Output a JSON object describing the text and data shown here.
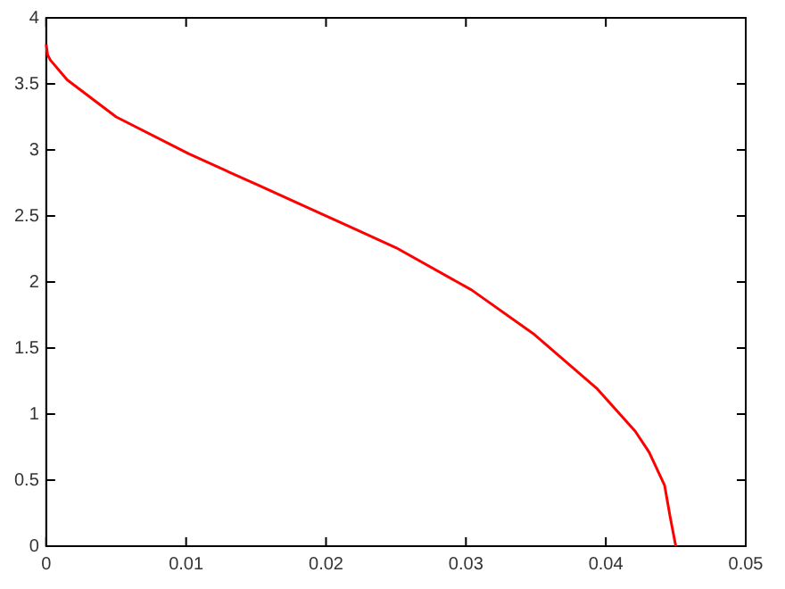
{
  "chart_data": {
    "type": "line",
    "x": [
      0,
      0.0001,
      0.0003,
      0.0015,
      0.005,
      0.0102,
      0.015,
      0.0196,
      0.025,
      0.0304,
      0.0348,
      0.0394,
      0.0421,
      0.0431,
      0.0442,
      0.0446,
      0.045
    ],
    "series": [
      {
        "color": "#ff0000",
        "values": [
          3.8,
          3.72,
          3.68,
          3.53,
          3.25,
          2.97,
          2.74,
          2.52,
          2.26,
          1.94,
          1.61,
          1.19,
          0.87,
          0.71,
          0.46,
          0.22,
          0
        ]
      }
    ],
    "xlim": [
      0,
      0.05
    ],
    "xticks": [
      0,
      0.01,
      0.02,
      0.03,
      0.04,
      0.05
    ],
    "ylim": [
      0,
      4
    ],
    "yticks": [
      0,
      0.5,
      1,
      1.5,
      2,
      2.5,
      3,
      3.5,
      4
    ],
    "grid": false,
    "legend": false,
    "marker": "none",
    "line_style": "solid"
  }
}
